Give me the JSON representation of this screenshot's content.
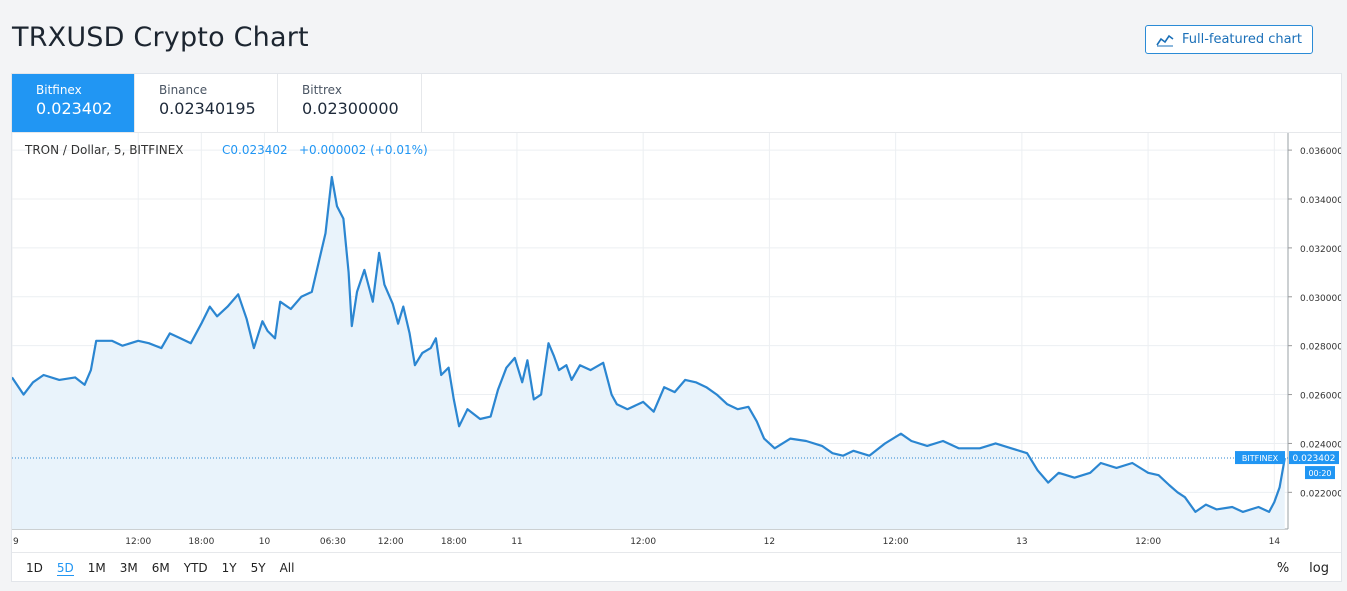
{
  "page": {
    "title": "TRXUSD Crypto Chart",
    "full_button_label": "Full-featured chart"
  },
  "exchanges": [
    {
      "name": "Bitfinex",
      "price": "0.023402",
      "active": true
    },
    {
      "name": "Binance",
      "price": "0.02340195",
      "active": false
    },
    {
      "name": "Bittrex",
      "price": "0.02300000",
      "active": false
    }
  ],
  "legend": {
    "symbol": "TRON / Dollar, 5, BITFINEX",
    "close": "C0.023402",
    "change": "+0.000002 (+0.01%)"
  },
  "range_buttons": [
    "1D",
    "5D",
    "1M",
    "3M",
    "6M",
    "YTD",
    "1Y",
    "5Y",
    "All"
  ],
  "selected_range": "5D",
  "right_controls": [
    "%",
    "log"
  ],
  "colors": {
    "line": "#2b86d1",
    "area": "#e9f3fb",
    "accent": "#2196f3",
    "last_price_line": "#2b86d1"
  },
  "chart_data": {
    "type": "area",
    "ylim": [
      0.0205,
      0.0367
    ],
    "y_ticks": [
      "0.036000",
      "0.034000",
      "0.032000",
      "0.030000",
      "0.028000",
      "0.026000",
      "0.024000",
      "0.022000"
    ],
    "y_tick_values": [
      0.036,
      0.034,
      0.032,
      0.03,
      0.028,
      0.026,
      0.024,
      0.022
    ],
    "x_labels": [
      {
        "label": "9",
        "t": 0,
        "major": true
      },
      {
        "label": "12:00",
        "t": 12,
        "major": false
      },
      {
        "label": "18:00",
        "t": 18,
        "major": false
      },
      {
        "label": "10",
        "t": 24,
        "major": true
      },
      {
        "label": "06:30",
        "t": 30.5,
        "major": false
      },
      {
        "label": "12:00",
        "t": 36,
        "major": false
      },
      {
        "label": "18:00",
        "t": 42,
        "major": false
      },
      {
        "label": "11",
        "t": 48,
        "major": true
      },
      {
        "label": "12:00",
        "t": 60,
        "major": false
      },
      {
        "label": "12",
        "t": 72,
        "major": true
      },
      {
        "label": "12:00",
        "t": 84,
        "major": false
      },
      {
        "label": "13",
        "t": 96,
        "major": true
      },
      {
        "label": "12:00",
        "t": 108,
        "major": false
      },
      {
        "label": "14",
        "t": 120,
        "major": true
      }
    ],
    "x_range_hours": [
      0,
      121.3
    ],
    "last_price": 0.023402,
    "last_price_label": "0.023402",
    "last_price_exchange": "BITFINEX",
    "countdown": "00:20",
    "points": [
      [
        0,
        0.0267
      ],
      [
        1.1,
        0.026
      ],
      [
        2,
        0.0265
      ],
      [
        3,
        0.0268
      ],
      [
        4.5,
        0.0266
      ],
      [
        6,
        0.0267
      ],
      [
        6.9,
        0.0264
      ],
      [
        7.5,
        0.027
      ],
      [
        8,
        0.0282
      ],
      [
        9.5,
        0.0282
      ],
      [
        10.5,
        0.028
      ],
      [
        12,
        0.0282
      ],
      [
        13,
        0.0281
      ],
      [
        14.2,
        0.0279
      ],
      [
        15,
        0.0285
      ],
      [
        16,
        0.0283
      ],
      [
        17,
        0.0281
      ],
      [
        18,
        0.0289
      ],
      [
        18.8,
        0.0296
      ],
      [
        19.5,
        0.0292
      ],
      [
        20.5,
        0.0296
      ],
      [
        21.5,
        0.0301
      ],
      [
        22.3,
        0.0291
      ],
      [
        23,
        0.0279
      ],
      [
        23.8,
        0.029
      ],
      [
        24.3,
        0.0286
      ],
      [
        25,
        0.0283
      ],
      [
        25.5,
        0.0298
      ],
      [
        26.5,
        0.0295
      ],
      [
        27.5,
        0.03
      ],
      [
        28.5,
        0.0302
      ],
      [
        29.2,
        0.0315
      ],
      [
        29.8,
        0.0326
      ],
      [
        30.4,
        0.0349
      ],
      [
        30.9,
        0.0337
      ],
      [
        31.5,
        0.0332
      ],
      [
        32,
        0.031
      ],
      [
        32.3,
        0.0288
      ],
      [
        32.8,
        0.0302
      ],
      [
        33.5,
        0.0311
      ],
      [
        34.3,
        0.0298
      ],
      [
        34.9,
        0.0318
      ],
      [
        35.4,
        0.0305
      ],
      [
        36.2,
        0.0297
      ],
      [
        36.7,
        0.0289
      ],
      [
        37.2,
        0.0296
      ],
      [
        37.8,
        0.0285
      ],
      [
        38.3,
        0.0272
      ],
      [
        39,
        0.0277
      ],
      [
        39.8,
        0.0279
      ],
      [
        40.3,
        0.0283
      ],
      [
        40.8,
        0.0268
      ],
      [
        41.5,
        0.0271
      ],
      [
        42,
        0.0258
      ],
      [
        42.5,
        0.0247
      ],
      [
        43.3,
        0.0254
      ],
      [
        44.5,
        0.025
      ],
      [
        45.5,
        0.0251
      ],
      [
        46.2,
        0.0262
      ],
      [
        47,
        0.0271
      ],
      [
        47.8,
        0.0275
      ],
      [
        48.5,
        0.0265
      ],
      [
        49,
        0.0274
      ],
      [
        49.6,
        0.0258
      ],
      [
        50.3,
        0.026
      ],
      [
        51,
        0.0281
      ],
      [
        51.5,
        0.0276
      ],
      [
        52,
        0.027
      ],
      [
        52.7,
        0.0272
      ],
      [
        53.2,
        0.0266
      ],
      [
        54,
        0.0272
      ],
      [
        55,
        0.027
      ],
      [
        56.2,
        0.0273
      ],
      [
        57,
        0.026
      ],
      [
        57.5,
        0.0256
      ],
      [
        58.5,
        0.0254
      ],
      [
        60,
        0.0257
      ],
      [
        61,
        0.0253
      ],
      [
        62,
        0.0263
      ],
      [
        63,
        0.0261
      ],
      [
        64,
        0.0266
      ],
      [
        65,
        0.0265
      ],
      [
        66,
        0.0263
      ],
      [
        67,
        0.026
      ],
      [
        68,
        0.0256
      ],
      [
        69,
        0.0254
      ],
      [
        70,
        0.0255
      ],
      [
        70.8,
        0.0249
      ],
      [
        71.5,
        0.0242
      ],
      [
        72.5,
        0.0238
      ],
      [
        74,
        0.0242
      ],
      [
        75.5,
        0.0241
      ],
      [
        77,
        0.0239
      ],
      [
        78,
        0.0236
      ],
      [
        79,
        0.0235
      ],
      [
        80,
        0.0237
      ],
      [
        81.5,
        0.0235
      ],
      [
        83,
        0.024
      ],
      [
        84.5,
        0.0244
      ],
      [
        85.5,
        0.0241
      ],
      [
        87,
        0.0239
      ],
      [
        88.5,
        0.0241
      ],
      [
        90,
        0.0238
      ],
      [
        92,
        0.0238
      ],
      [
        93.5,
        0.024
      ],
      [
        95,
        0.0238
      ],
      [
        96.5,
        0.0236
      ],
      [
        97.5,
        0.0229
      ],
      [
        98.5,
        0.0224
      ],
      [
        99.5,
        0.0228
      ],
      [
        101,
        0.0226
      ],
      [
        102.5,
        0.0228
      ],
      [
        103.5,
        0.0232
      ],
      [
        105,
        0.023
      ],
      [
        106.5,
        0.0232
      ],
      [
        108,
        0.0228
      ],
      [
        109,
        0.0227
      ],
      [
        110,
        0.0223
      ],
      [
        110.8,
        0.022
      ],
      [
        111.5,
        0.0218
      ],
      [
        112.5,
        0.0212
      ],
      [
        113.5,
        0.0215
      ],
      [
        114.5,
        0.0213
      ],
      [
        116,
        0.0214
      ],
      [
        117,
        0.0212
      ],
      [
        118.5,
        0.0214
      ],
      [
        119.5,
        0.0212
      ],
      [
        120,
        0.0216
      ],
      [
        120.5,
        0.0222
      ],
      [
        121,
        0.0234
      ]
    ]
  }
}
